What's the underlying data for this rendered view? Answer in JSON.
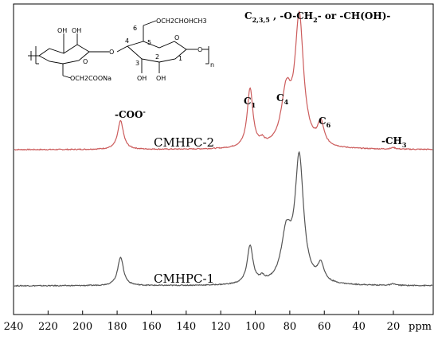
{
  "chart_data": {
    "type": "line",
    "x_unit_label": "ppm",
    "xlim": [
      240,
      0
    ],
    "x_ticks": [
      240,
      220,
      200,
      180,
      160,
      140,
      120,
      100,
      80,
      60,
      40,
      20
    ],
    "x_reversed": true,
    "grid": false,
    "series": [
      {
        "name": "CMHPC-2",
        "color": "#cc5c5c",
        "peaks": [
          {
            "x": 178,
            "height": 0.18,
            "width": 2.0
          },
          {
            "x": 103,
            "height": 0.37,
            "width": 2.0
          },
          {
            "x": 96,
            "height": 0.03,
            "width": 1.5
          },
          {
            "x": 82,
            "height": 0.33,
            "width": 3.5
          },
          {
            "x": 74.5,
            "height": 0.8,
            "width": 3.0
          },
          {
            "x": 62,
            "height": 0.14,
            "width": 2.2
          },
          {
            "x": 20,
            "height": 0.01,
            "width": 1.5
          }
        ]
      },
      {
        "name": "CMHPC-1",
        "color": "#555555",
        "peaks": [
          {
            "x": 178,
            "height": 0.18,
            "width": 2.0
          },
          {
            "x": 103,
            "height": 0.24,
            "width": 2.0
          },
          {
            "x": 96,
            "height": 0.03,
            "width": 1.5
          },
          {
            "x": 82,
            "height": 0.3,
            "width": 3.5
          },
          {
            "x": 74.5,
            "height": 0.78,
            "width": 3.0
          },
          {
            "x": 62,
            "height": 0.11,
            "width": 2.2
          },
          {
            "x": 20,
            "height": 0.01,
            "width": 1.5
          }
        ]
      }
    ],
    "annotations": [
      {
        "id": "coo",
        "main": "-COO",
        "sup": "-"
      },
      {
        "id": "c1",
        "main": "C",
        "sub": "1"
      },
      {
        "id": "c4",
        "main": "C",
        "sub": "4"
      },
      {
        "id": "c6",
        "main": "C",
        "sub": "6"
      },
      {
        "id": "ch3",
        "main": "-CH",
        "sub": "3"
      },
      {
        "id": "c235",
        "main": "C",
        "sub": "2,3,5",
        "rest": " , -O-CH",
        "sub2": "2",
        "rest2": "- or -CH(OH)-"
      }
    ]
  },
  "structure": {
    "labels": {
      "oh": "OH",
      "ocoona": "OCH2COONa",
      "ochoh": "OCH2CHOHCH3",
      "o": "O",
      "n": "n",
      "c1": "1",
      "c2": "2",
      "c3": "3",
      "c4": "4",
      "c5": "5",
      "c6": "6"
    }
  }
}
